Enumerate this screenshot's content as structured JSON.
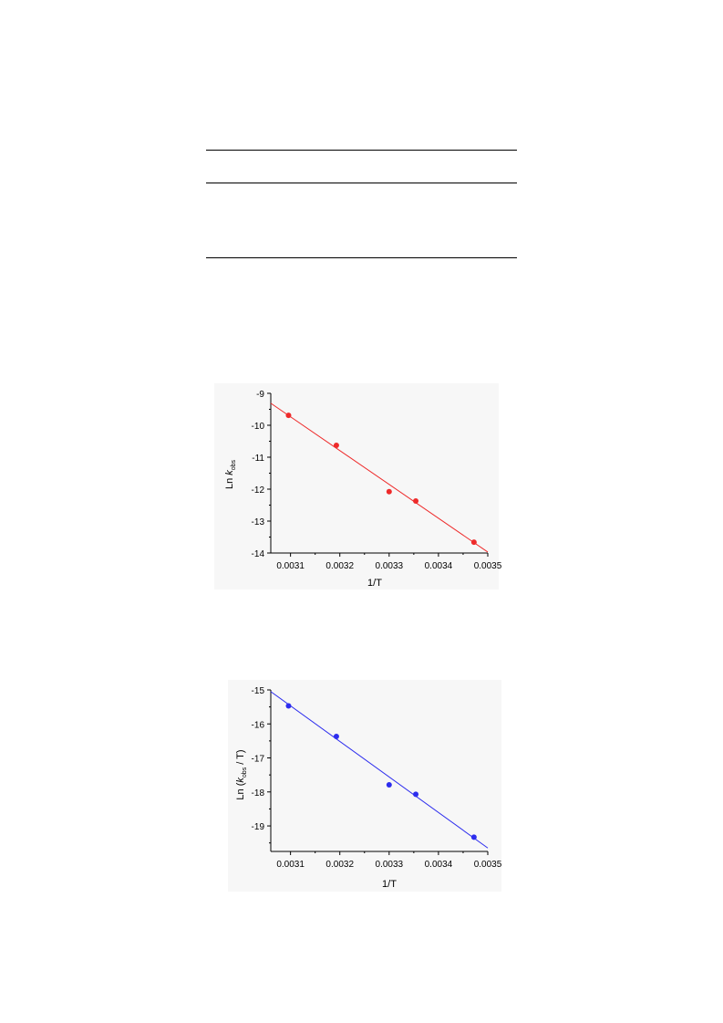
{
  "chart_data": [
    {
      "type": "scatter",
      "title": "",
      "xlabel": "1/T",
      "ylabel": {
        "prefix": "Ln ",
        "var": "k",
        "sub": "obs",
        "suffix": ""
      },
      "xlim": [
        0.00306,
        0.0035
      ],
      "ylim": [
        -14,
        -9
      ],
      "xticks": [
        "0.0031",
        "0.0032",
        "0.0033",
        "0.0034",
        "0.0035"
      ],
      "yticks": [
        "-9",
        "-10",
        "-11",
        "-12",
        "-13",
        "-14"
      ],
      "color": "#ee2a2a",
      "grid": false,
      "legend": "none",
      "points": [
        {
          "x": 0.003096,
          "y": -9.69
        },
        {
          "x": 0.003193,
          "y": -10.63
        },
        {
          "x": 0.0033,
          "y": -12.08
        },
        {
          "x": 0.003354,
          "y": -12.37
        },
        {
          "x": 0.003472,
          "y": -13.66
        }
      ],
      "fit": [
        {
          "x": 0.00306,
          "y": -9.31
        },
        {
          "x": 0.0035,
          "y": -13.97
        }
      ]
    },
    {
      "type": "scatter",
      "title": "",
      "xlabel": "1/T",
      "ylabel": {
        "prefix": "Ln (",
        "var": "k",
        "sub": "obs",
        "suffix": " / T)"
      },
      "xlim": [
        0.00306,
        0.0035
      ],
      "ylim": [
        -19.75,
        -15
      ],
      "xticks": [
        "0.0031",
        "0.0032",
        "0.0033",
        "0.0034",
        "0.0035"
      ],
      "yticks": [
        "-15",
        "-16",
        "-17",
        "-18",
        "-19"
      ],
      "color": "#2d2dee",
      "grid": false,
      "legend": "none",
      "points": [
        {
          "x": 0.003096,
          "y": -15.47
        },
        {
          "x": 0.003193,
          "y": -16.37
        },
        {
          "x": 0.0033,
          "y": -17.79
        },
        {
          "x": 0.003354,
          "y": -18.07
        },
        {
          "x": 0.003472,
          "y": -19.33
        }
      ],
      "fit": [
        {
          "x": 0.00306,
          "y": -15.05
        },
        {
          "x": 0.0035,
          "y": -19.65
        }
      ]
    }
  ]
}
